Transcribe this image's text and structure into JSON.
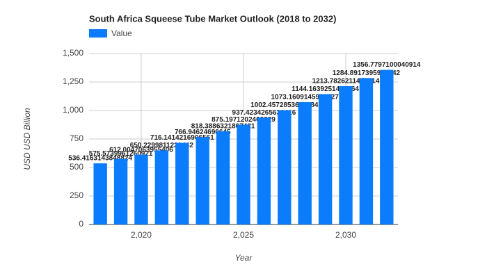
{
  "chart_data": {
    "type": "bar",
    "title": "South Africa Squeese Tube Market Outlook (2018 to 2032)",
    "x_label": "Year",
    "y_label": "USD USD Billion",
    "x": [
      2018,
      2019,
      2020,
      2021,
      2022,
      2023,
      2024,
      2025,
      2026,
      2027,
      2028,
      2029,
      2030,
      2031,
      2032
    ],
    "series": [
      {
        "name": "Value",
        "color": "#0b7cfb",
        "values": [
          536.4163143848824,
          575.5739961260921,
          612.0047063955406,
          650.2299811229442,
          716.1414216906561,
          766.94624690645,
          818.3886321867421,
          875.1971202462229,
          937.4234265636416,
          1002.4572853637084,
          1073.1609145956727,
          1144.1639251407264,
          1213.7826211494014,
          1284.8917395977242,
          1356.7797100040914
        ]
      }
    ],
    "xlim": [
      2017.45,
      2032.55
    ],
    "xticks": [
      {
        "value": 2020,
        "label": "2,020"
      },
      {
        "value": 2025,
        "label": "2,025"
      },
      {
        "value": 2030,
        "label": "2,030"
      }
    ],
    "ylim": [
      0,
      1500
    ],
    "yticks": [
      0,
      250,
      500,
      750,
      {
        "value": 1000,
        "label": "1,000"
      },
      {
        "value": 1250,
        "label": "1,250"
      },
      {
        "value": 1500,
        "label": "1,500"
      }
    ],
    "grid": true,
    "legend": "top-left"
  }
}
